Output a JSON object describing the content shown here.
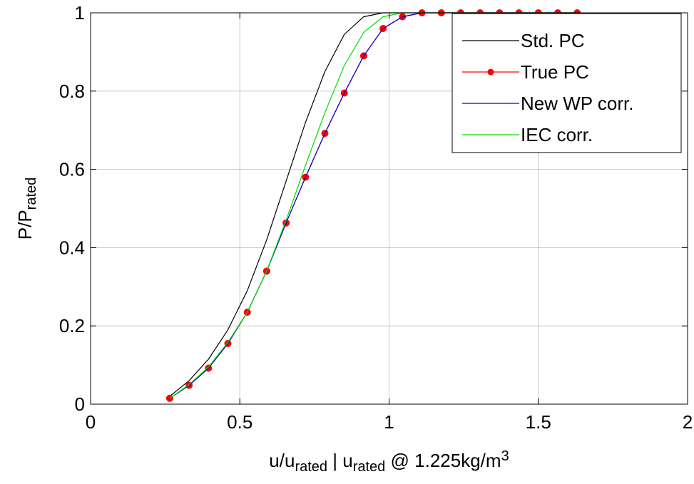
{
  "chart_data": {
    "type": "line",
    "title": "",
    "xlabel": {
      "parts": [
        {
          "text": "u/u",
          "sub": false
        },
        {
          "text": "rated",
          "sub": true
        },
        {
          "text": " | u",
          "sub": false
        },
        {
          "text": "rated",
          "sub": true
        },
        {
          "text": " @ 1.225kg/m",
          "sub": false
        },
        {
          "text": "3",
          "sup": true
        }
      ]
    },
    "ylabel": {
      "parts": [
        {
          "text": "P/P",
          "sub": false
        },
        {
          "text": "rated",
          "sub": true
        }
      ]
    },
    "xlim": [
      0,
      2
    ],
    "ylim": [
      0,
      1
    ],
    "xticks": [
      0,
      0.5,
      1,
      1.5,
      2
    ],
    "xtick_labels": [
      "0",
      "0.5",
      "1",
      "1.5",
      "2"
    ],
    "yticks": [
      0,
      0.2,
      0.4,
      0.6,
      0.8,
      1
    ],
    "ytick_labels": [
      "0",
      "0.2",
      "0.4",
      "0.6",
      "0.8",
      "1"
    ],
    "grid": true,
    "legend_position": "top-right",
    "series": [
      {
        "name": "Std. PC",
        "color": "#000000",
        "marker": "none",
        "x": [
          0.265,
          0.33,
          0.395,
          0.46,
          0.525,
          0.59,
          0.655,
          0.72,
          0.785,
          0.85,
          0.915,
          0.98,
          1.045,
          1.11,
          1.175,
          1.24,
          1.305,
          1.37,
          1.435,
          1.5,
          1.565,
          1.63
        ],
        "y": [
          0.02,
          0.06,
          0.115,
          0.19,
          0.29,
          0.42,
          0.57,
          0.72,
          0.85,
          0.945,
          0.99,
          1.0,
          1.0,
          1.0,
          1.0,
          1.0,
          1.0,
          1.0,
          1.0,
          1.0,
          1.0,
          1.0
        ]
      },
      {
        "name": "True PC",
        "color": "#ff0000",
        "marker": "circle",
        "x": [
          0.265,
          0.33,
          0.395,
          0.46,
          0.525,
          0.59,
          0.655,
          0.72,
          0.785,
          0.85,
          0.915,
          0.98,
          1.045,
          1.11,
          1.175,
          1.24,
          1.305,
          1.37,
          1.435,
          1.5,
          1.565,
          1.63
        ],
        "y": [
          0.015,
          0.048,
          0.092,
          0.155,
          0.235,
          0.34,
          0.463,
          0.58,
          0.692,
          0.795,
          0.89,
          0.96,
          0.99,
          1.0,
          1.0,
          1.0,
          1.0,
          1.0,
          1.0,
          1.0,
          1.0,
          1.0
        ]
      },
      {
        "name": "New WP corr.",
        "color": "#0000cc",
        "marker": "none",
        "x": [
          0.265,
          0.33,
          0.395,
          0.46,
          0.525,
          0.59,
          0.655,
          0.72,
          0.785,
          0.85,
          0.915,
          0.98,
          1.045,
          1.11,
          1.175,
          1.24,
          1.305,
          1.37,
          1.435,
          1.5,
          1.565,
          1.63
        ],
        "y": [
          0.015,
          0.048,
          0.092,
          0.155,
          0.235,
          0.34,
          0.463,
          0.58,
          0.692,
          0.795,
          0.89,
          0.96,
          0.99,
          1.0,
          1.0,
          1.0,
          1.0,
          1.0,
          1.0,
          1.0,
          1.0,
          1.0
        ]
      },
      {
        "name": "IEC corr.",
        "color": "#00dd00",
        "marker": "none",
        "x": [
          0.265,
          0.33,
          0.395,
          0.46,
          0.525,
          0.59,
          0.655,
          0.72,
          0.785,
          0.85,
          0.915,
          0.98,
          1.045,
          1.11,
          1.175,
          1.24,
          1.305,
          1.37,
          1.435,
          1.5,
          1.565,
          1.63
        ],
        "y": [
          0.015,
          0.05,
          0.095,
          0.158,
          0.235,
          0.34,
          0.47,
          0.61,
          0.745,
          0.865,
          0.95,
          0.99,
          1.0,
          1.0,
          1.0,
          1.0,
          1.0,
          1.0,
          1.0,
          1.0,
          1.0,
          1.0
        ]
      }
    ]
  }
}
